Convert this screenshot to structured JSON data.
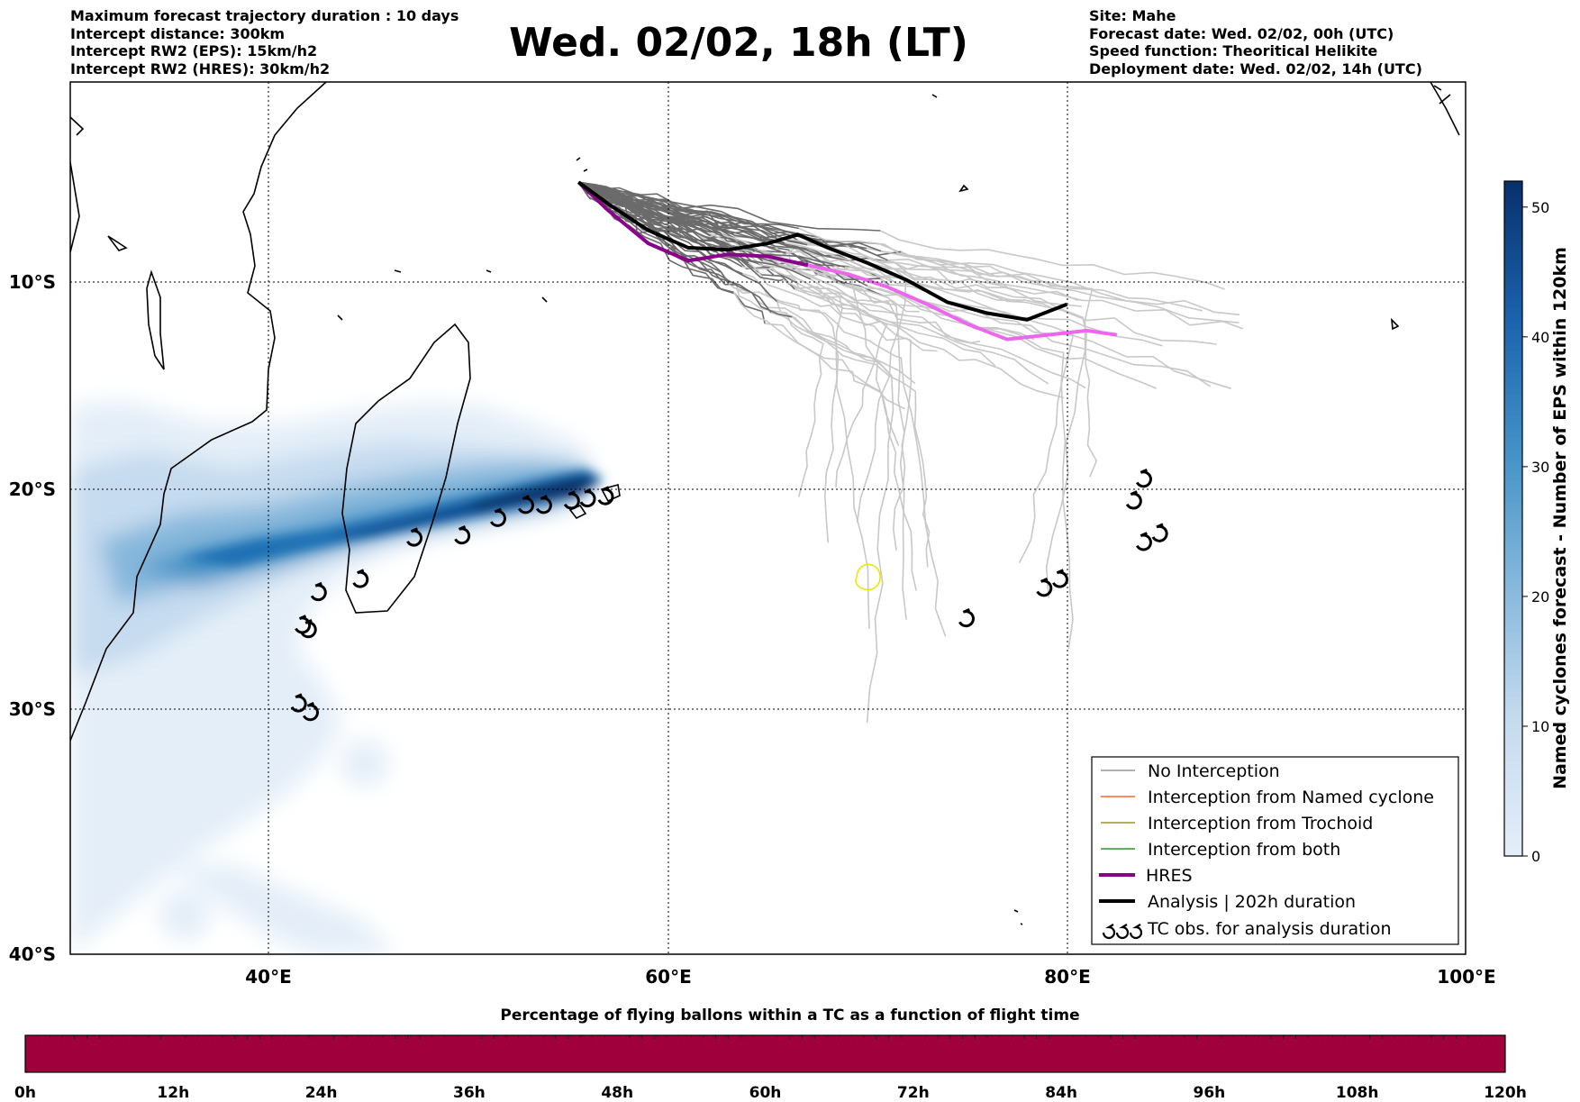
{
  "header_left": [
    "Maximum forecast trajectory duration : 10 days",
    "Intercept distance: 300km",
    "Intercept RW2 (EPS):  15km/h2",
    "Intercept RW2 (HRES): 30km/h2"
  ],
  "header_right": [
    "Site: Mahe",
    "Forecast date: Wed. 02/02, 00h (UTC)",
    "Speed function: Theoritical Helikite",
    "Deployment date: Wed. 02/02, 14h (UTC)"
  ],
  "title": "Wed. 02/02, 18h (LT)",
  "map": {
    "lon_range": [
      30,
      100
    ],
    "lat_range": [
      -40,
      0
    ],
    "lon_ticks": [
      "40°E",
      "60°E",
      "80°E",
      "100°E"
    ],
    "lat_ticks": [
      "10°S",
      "20°S",
      "30°S",
      "40°S"
    ],
    "colorbar": {
      "label": "Named cyclones forecast - Number of EPS within 120km",
      "ticks": [
        "0",
        "10",
        "20",
        "30",
        "40",
        "50"
      ],
      "range": [
        0,
        52
      ],
      "color_low": "#e4eef8",
      "color_high": "#08306b"
    },
    "legend": [
      {
        "label": "No Interception",
        "color": "#808080",
        "style": "thin"
      },
      {
        "label": "Interception from Named cyclone",
        "color": "#ff4500",
        "style": "thin"
      },
      {
        "label": "Interception from Trochoid",
        "color": "#808000",
        "style": "thin"
      },
      {
        "label": "Interception from both",
        "color": "#008000",
        "style": "thin"
      },
      {
        "label": "HRES",
        "color": "#8b008b",
        "style": "thick"
      },
      {
        "label": "Analysis | 202h duration",
        "color": "#000000",
        "style": "thick"
      },
      {
        "label": "TC obs. for analysis duration",
        "color": "#000000",
        "style": "symbol"
      }
    ],
    "site": {
      "name": "Mahe",
      "lon": 55.5,
      "lat": -4.6
    },
    "analysis_track": [
      [
        55.5,
        -4.6
      ],
      [
        57,
        -5.6
      ],
      [
        59,
        -6.8
      ],
      [
        61,
        -7.6
      ],
      [
        63,
        -7.7
      ],
      [
        65,
        -7.4
      ],
      [
        66.5,
        -7
      ],
      [
        68,
        -7.6
      ],
      [
        70,
        -8.3
      ],
      [
        72,
        -9.1
      ],
      [
        74,
        -10.1
      ],
      [
        76,
        -10.6
      ],
      [
        78,
        -10.9
      ],
      [
        80,
        -10.2
      ]
    ],
    "hres_track": [
      [
        55.5,
        -4.6
      ],
      [
        57,
        -5.9
      ],
      [
        59,
        -7.4
      ],
      [
        61,
        -8.2
      ],
      [
        63,
        -7.9
      ],
      [
        65,
        -8
      ],
      [
        67,
        -8.4
      ],
      [
        69,
        -8.8
      ],
      [
        71,
        -9.4
      ],
      [
        73,
        -10.2
      ],
      [
        75,
        -11.1
      ],
      [
        77,
        -11.8
      ],
      [
        79,
        -11.6
      ],
      [
        81,
        -11.4
      ],
      [
        82.5,
        -11.6
      ]
    ],
    "tc_obs": [
      [
        41.3,
        -28.5
      ],
      [
        41.9,
        -28.9
      ],
      [
        41.5,
        -24.9
      ],
      [
        41.8,
        -25.1
      ],
      [
        42.3,
        -23.4
      ],
      [
        44.4,
        -22.8
      ],
      [
        47.1,
        -20.9
      ],
      [
        49.5,
        -20.8
      ],
      [
        51.3,
        -20
      ],
      [
        52.7,
        -19.4
      ],
      [
        53.6,
        -19.4
      ],
      [
        55,
        -19.2
      ],
      [
        55.8,
        -19.1
      ],
      [
        56.7,
        -19
      ],
      [
        74.8,
        -24.6
      ],
      [
        78.7,
        -23.2
      ],
      [
        79.5,
        -22.8
      ],
      [
        83.7,
        -21.1
      ],
      [
        84.5,
        -20.7
      ],
      [
        83.2,
        -19.2
      ],
      [
        83.7,
        -18.2
      ]
    ],
    "trochoid_marker": {
      "lon": 70,
      "lat": -22.7,
      "color": "#e6e600"
    }
  },
  "flight_bar": {
    "title": "Percentage of flying ballons within a TC as a function of flight time",
    "ticks": [
      "0h",
      "12h",
      "24h",
      "36h",
      "48h",
      "60h",
      "72h",
      "84h",
      "96h",
      "108h",
      "120h"
    ],
    "color": "#a0003c"
  }
}
